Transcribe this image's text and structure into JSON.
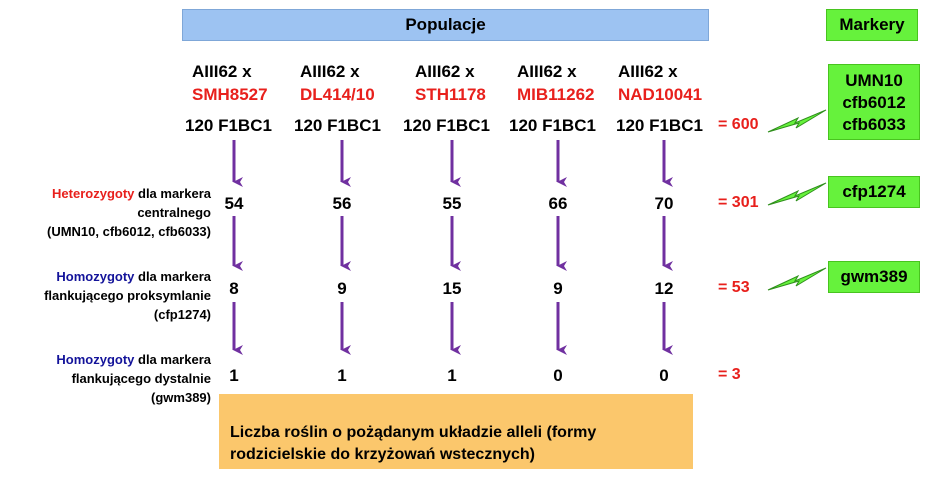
{
  "header": {
    "populations_label": "Populacje",
    "markers_label": "Markery"
  },
  "columns": [
    {
      "parent": "AIII62 x",
      "donor": "SMH8527",
      "generation": "120 F1BC1",
      "stage1": "54",
      "stage2": "8",
      "stage3": "1",
      "desired": "8"
    },
    {
      "parent": "AIII62 x",
      "donor": "DL414/10",
      "generation": "120 F1BC1",
      "stage1": "56",
      "stage2": "9",
      "stage3": "1",
      "desired": "9"
    },
    {
      "parent": "AIII62 x",
      "donor": "STH1178",
      "generation": "120 F1BC1",
      "stage1": "55",
      "stage2": "15",
      "stage3": "1",
      "desired": "15"
    },
    {
      "parent": "AIII62 x",
      "donor": "MIB11262",
      "generation": "120 F1BC1",
      "stage1": "66",
      "stage2": "9",
      "stage3": "0",
      "desired": "9"
    },
    {
      "parent": "AIII62 x",
      "donor": "NAD10041",
      "generation": "120 F1BC1",
      "stage1": "70",
      "stage2": "12",
      "stage3": "0",
      "desired": "12"
    }
  ],
  "totals": {
    "generation": "= 600",
    "stage1": "= 301",
    "stage2": "= 53",
    "stage3": "= 3"
  },
  "stages": {
    "stage1": {
      "highlight": "Heterozygoty",
      "line1_rest": " dla markera",
      "line2": "centralnego",
      "line3": "(UMN10, cfb6012, cfb6033)"
    },
    "stage2": {
      "highlight": "Homozygoty",
      "line1_rest": " dla markera",
      "line2": "flankującego proksymlanie",
      "line3": "(cfp1274)"
    },
    "stage3": {
      "highlight": "Homozygoty",
      "line1_rest": " dla markera",
      "line2": "flankującego dystalnie",
      "line3": "(gwm389)"
    }
  },
  "markers": {
    "central": [
      "UMN10",
      "cfb6012",
      "cfb6033"
    ],
    "proximal": "cfp1274",
    "distal": "gwm389"
  },
  "summary": {
    "line1": "Liczba roślin o pożądanym układzie alleli (formy",
    "line2": "rodzicielskie do krzyżowań wstecznych)"
  },
  "colors": {
    "donor_red": "#e8201c",
    "header_blue": "#9dc3f2",
    "marker_green": "#66f23c",
    "summary_orange": "#fbc76c",
    "arrow_purple": "#7030a0",
    "stage_blue": "#13139a"
  }
}
